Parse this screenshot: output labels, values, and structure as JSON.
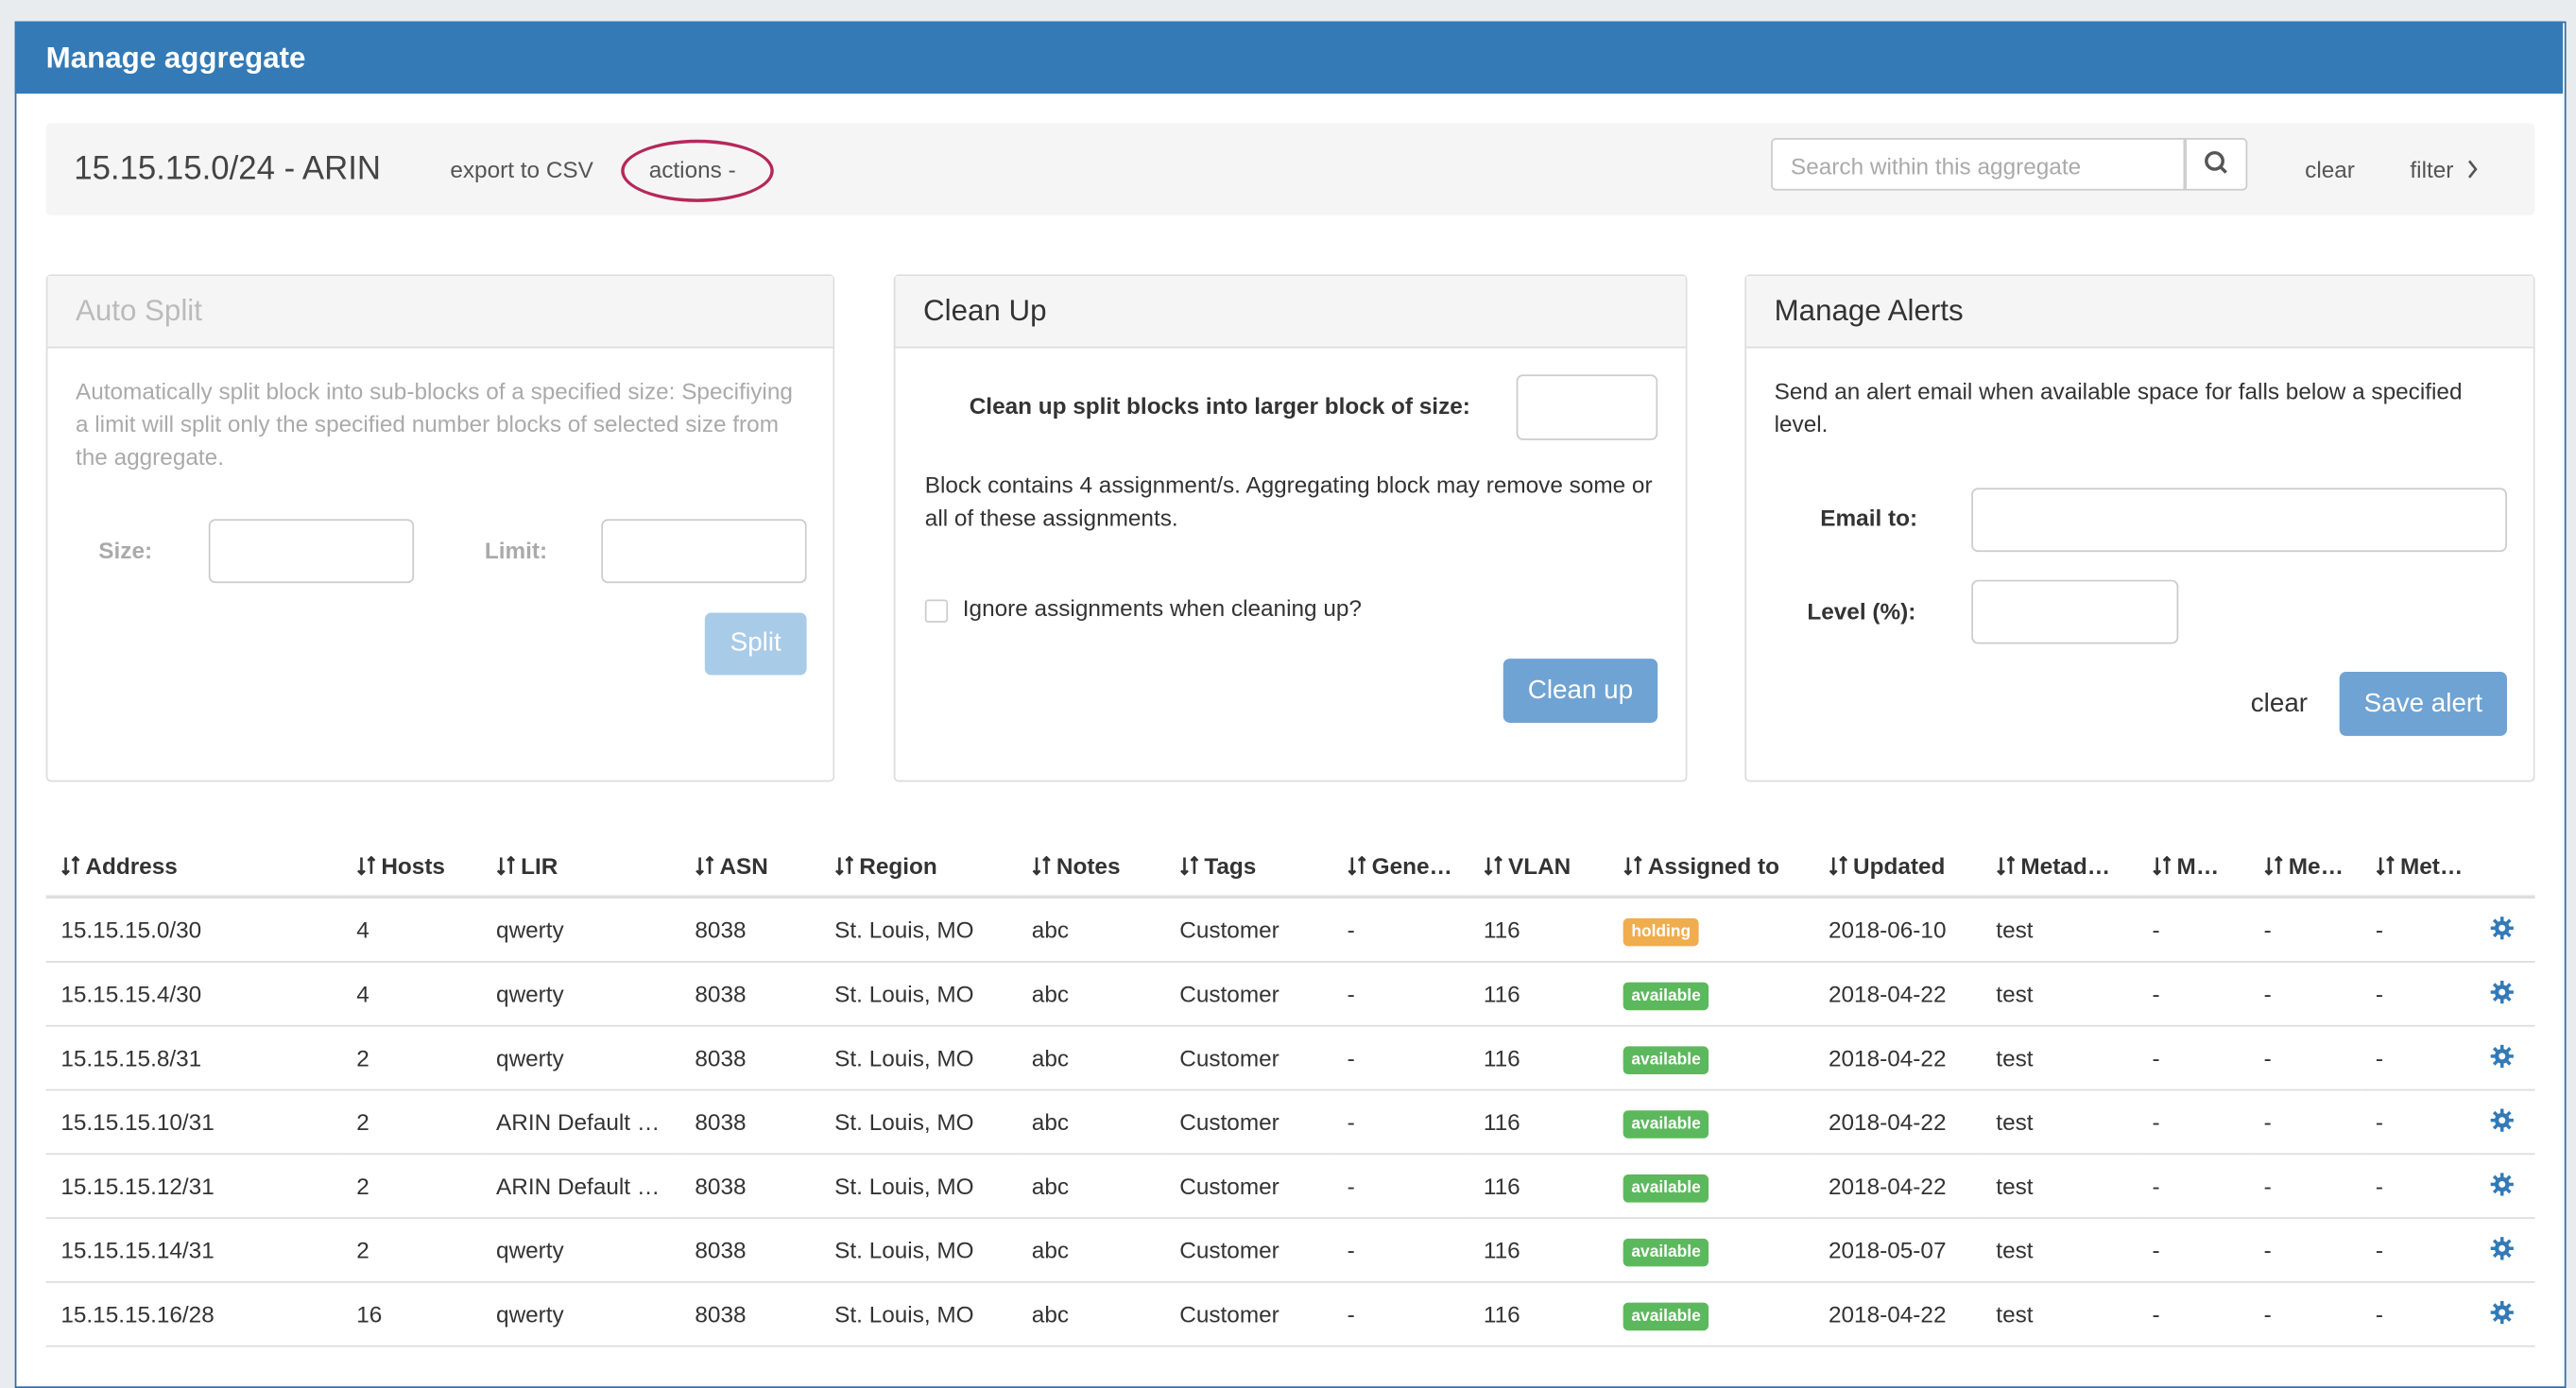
{
  "header": {
    "title": "Manage aggregate"
  },
  "toolbar": {
    "aggregate": "15.15.15.0/24 - ARIN",
    "export": "export to CSV",
    "actions": "actions -",
    "search_placeholder": "Search within this aggregate",
    "clear": "clear",
    "filter": "filter"
  },
  "auto_split": {
    "title": "Auto Split",
    "description": "Automatically split block into sub-blocks of a specified size: Specifiying a limit will split only the specified number blocks of selected size from the aggregate.",
    "size_label": "Size:",
    "limit_label": "Limit:",
    "button": "Split"
  },
  "clean_up": {
    "title": "Clean Up",
    "size_label": "Clean up split blocks into larger block of size:",
    "message": "Block contains 4 assignment/s. Aggregating block may remove some or all of these assignments.",
    "checkbox_label": "Ignore assignments when cleaning up?",
    "button": "Clean up"
  },
  "alerts": {
    "title": "Manage Alerts",
    "description": "Send an alert email when available space for falls below a specified level.",
    "email_label": "Email to:",
    "level_label": "Level (%):",
    "clear": "clear",
    "button": "Save alert"
  },
  "table": {
    "columns": [
      "Address",
      "Hosts",
      "LIR",
      "ASN",
      "Region",
      "Notes",
      "Tags",
      "Gene…",
      "VLAN",
      "Assigned to",
      "Updated",
      "Metad…",
      "M…",
      "Me…",
      "Met…"
    ],
    "rows": [
      [
        "15.15.15.0/30",
        4,
        "qwerty",
        8038,
        "St. Louis, MO",
        "abc",
        "Customer",
        "-",
        116,
        "holding",
        "2018-06-10",
        "test",
        "-",
        "-",
        "-"
      ],
      [
        "15.15.15.4/30",
        4,
        "qwerty",
        8038,
        "St. Louis, MO",
        "abc",
        "Customer",
        "-",
        116,
        "available",
        "2018-04-22",
        "test",
        "-",
        "-",
        "-"
      ],
      [
        "15.15.15.8/31",
        2,
        "qwerty",
        8038,
        "St. Louis, MO",
        "abc",
        "Customer",
        "-",
        116,
        "available",
        "2018-04-22",
        "test",
        "-",
        "-",
        "-"
      ],
      [
        "15.15.15.10/31",
        2,
        "ARIN Default …",
        8038,
        "St. Louis, MO",
        "abc",
        "Customer",
        "-",
        116,
        "available",
        "2018-04-22",
        "test",
        "-",
        "-",
        "-"
      ],
      [
        "15.15.15.12/31",
        2,
        "ARIN Default …",
        8038,
        "St. Louis, MO",
        "abc",
        "Customer",
        "-",
        116,
        "available",
        "2018-04-22",
        "test",
        "-",
        "-",
        "-"
      ],
      [
        "15.15.15.14/31",
        2,
        "qwerty",
        8038,
        "St. Louis, MO",
        "abc",
        "Customer",
        "-",
        116,
        "available",
        "2018-05-07",
        "test",
        "-",
        "-",
        "-"
      ],
      [
        "15.15.15.16/28",
        16,
        "qwerty",
        8038,
        "St. Louis, MO",
        "abc",
        "Customer",
        "-",
        116,
        "available",
        "2018-04-22",
        "test",
        "-",
        "-",
        "-"
      ]
    ]
  }
}
